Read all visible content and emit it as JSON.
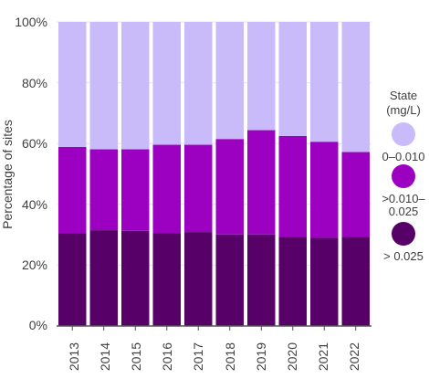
{
  "chart_data": {
    "type": "bar",
    "stacked": true,
    "categories": [
      "2013",
      "2014",
      "2015",
      "2016",
      "2017",
      "2018",
      "2019",
      "2020",
      "2021",
      "2022"
    ],
    "series": [
      {
        "name": "> 0.025",
        "color": "#560068",
        "values": [
          30.5,
          31.5,
          31.3,
          30.6,
          30.9,
          30.1,
          30.1,
          29.3,
          29.0,
          29.3
        ]
      },
      {
        "name": ">0.010–0.025",
        "color": "#9c00c0",
        "values": [
          28.4,
          26.6,
          26.8,
          29.0,
          28.7,
          31.4,
          34.3,
          33.2,
          31.6,
          27.9
        ]
      },
      {
        "name": "0–0.010",
        "color": "#c9bbf9",
        "values": [
          41.1,
          41.9,
          41.9,
          40.4,
          40.4,
          38.5,
          35.6,
          37.5,
          39.4,
          42.8
        ]
      }
    ],
    "title": "",
    "xlabel": "",
    "ylabel": "Percentage of sites",
    "ylim": [
      0,
      100
    ],
    "yticks": [
      "0%",
      "20%",
      "40%",
      "60%",
      "80%",
      "100%"
    ],
    "grid": true,
    "legend": {
      "title_line1": "State",
      "title_line2": "(mg/L)",
      "position": "right",
      "entries": [
        {
          "label": "0–0.010",
          "color": "#c9bbf9"
        },
        {
          "label": ">0.010–",
          "label_line2": "0.025",
          "color": "#9c00c0"
        },
        {
          "label": "> 0.025",
          "color": "#560068"
        }
      ]
    }
  }
}
